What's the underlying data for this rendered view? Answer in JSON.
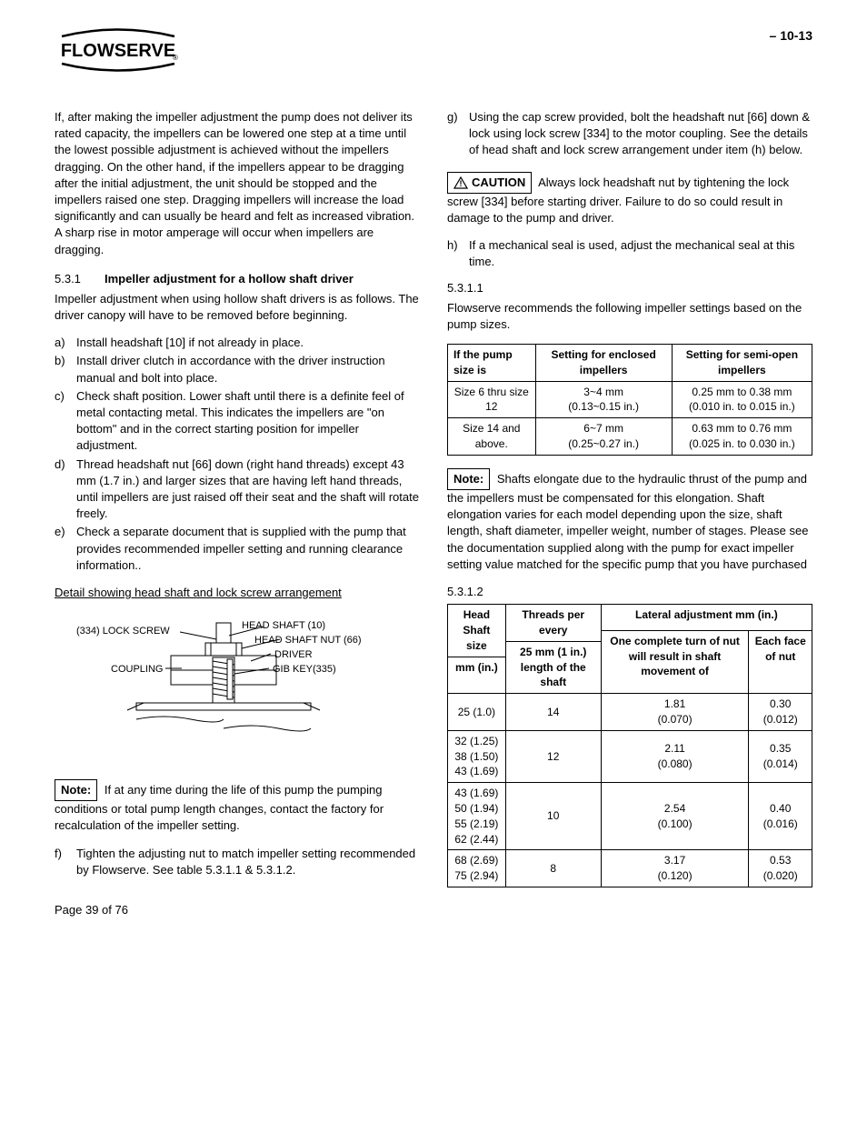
{
  "header": {
    "logo_name": "FLOWSERVE",
    "page_ref": "– 10-13"
  },
  "left": {
    "intro_para": "If, after making the impeller adjustment the pump does not deliver its rated capacity, the impellers can be lowered one step at a time until the lowest possible adjustment is achieved without the impellers dragging. On the other hand, if the impellers appear to be dragging after the initial adjustment, the unit should be stopped and the impellers raised one step.  Dragging impellers will increase the load significantly and can usually be heard and felt as increased vibration.  A sharp rise in motor amperage will occur when impellers are dragging.",
    "sec531_num": "5.3.1",
    "sec531_title": "Impeller adjustment for a hollow shaft driver",
    "sec531_intro": "Impeller adjustment when using hollow shaft drivers is as follows.  The driver canopy will have to be removed before beginning.",
    "items": [
      {
        "l": "a)",
        "t": "Install headshaft [10] if not already in place."
      },
      {
        "l": "b)",
        "t": "Install driver clutch in accordance with the driver instruction manual and bolt into place."
      },
      {
        "l": "c)",
        "t": "Check shaft position.  Lower shaft until there is a definite feel of metal contacting metal.  This indicates the impellers are \"on bottom\" and in the correct starting position for impeller adjustment."
      },
      {
        "l": "d)",
        "t": "Thread headshaft nut [66] down (right hand threads) except 43 mm (1.7 in.) and larger sizes that are having left hand threads, until impellers are just raised off their seat and the shaft will rotate freely."
      },
      {
        "l": "e)",
        "t": "Check a separate document that is supplied with the pump that provides recommended impeller setting and running clearance information.."
      }
    ],
    "detail_label": "Detail showing head shaft and lock screw arrangement",
    "diagram": {
      "lbl_lockscrew": "(334) LOCK SCREW",
      "lbl_headshaft": "HEAD SHAFT (10)",
      "lbl_nut": "HEAD SHAFT NUT (66)",
      "lbl_driver": "DRIVER",
      "lbl_coupling": "COUPLING",
      "lbl_gibkey": "GIB KEY(335)",
      "line_color": "#000000",
      "text_fontsize": 11
    },
    "note_label": "Note:",
    "note_text": " If at any time during the life of this pump the pumping conditions or total pump length changes, contact the factory for recalculation of the impeller setting.",
    "item_f": {
      "l": "f)",
      "t": "Tighten the adjusting nut to match impeller setting recommended by Flowserve.  See table 5.3.1.1 & 5.3.1.2."
    }
  },
  "right": {
    "item_g": {
      "l": "g)",
      "t": "Using the cap screw provided, bolt the headshaft nut [66] down & lock using lock screw [334] to the motor coupling.  See the details of head shaft and lock screw arrangement under item (h) below."
    },
    "caution_label": "CAUTION",
    "caution_text": " Always lock headshaft nut by tightening the lock screw [334] before starting driver. Failure to do so could result in damage to the pump and driver.",
    "item_h": {
      "l": "h)",
      "t": "If a mechanical seal is used, adjust the mechanical seal at this time."
    },
    "sec5311_num": "5.3.1.1",
    "sec5311_text": "Flowserve recommends the following impeller settings based on the pump sizes.",
    "table1": {
      "headers": [
        "If the pump size is",
        "Setting for enclosed impellers",
        "Setting for semi-open impellers"
      ],
      "rows": [
        [
          "Size 6 thru size 12",
          "3~4 mm\n(0.13~0.15 in.)",
          "0.25 mm to 0.38 mm\n(0.010 in. to 0.015 in.)"
        ],
        [
          "Size 14 and above.",
          "6~7 mm\n(0.25~0.27 in.)",
          "0.63 mm to 0.76 mm\n(0.025 in. to 0.030 in.)"
        ]
      ]
    },
    "note2_label": "Note:",
    "note2_text": " Shafts elongate due to the hydraulic thrust of the pump and the impellers must be compensated for this elongation.  Shaft elongation varies for each model depending upon the size, shaft length, shaft diameter, impeller weight, number of stages.  Please see the documentation supplied along with the pump for exact impeller setting value matched for the specific pump that you have purchased",
    "sec5312_num": "5.3.1.2",
    "table2": {
      "head_r1c1a": "Head Shaft size",
      "head_r1c1b": "mm (in.)",
      "head_r1c2a": "Threads per every",
      "head_r1c2b": "25 mm (1 in.) length of the shaft",
      "head_r1c3": "Lateral adjustment mm (in.)",
      "head_r2c3": "One complete turn of nut will result in shaft movement of",
      "head_r2c4": "Each face of nut",
      "rows": [
        [
          "25 (1.0)",
          "14",
          "1.81\n(0.070)",
          "0.30\n(0.012)"
        ],
        [
          "32 (1.25)\n38 (1.50)\n43 (1.69)",
          "12",
          "2.11\n(0.080)",
          "0.35\n(0.014)"
        ],
        [
          "43 (1.69)\n50 (1.94)\n55 (2.19)\n62 (2.44)",
          "10",
          "2.54\n(0.100)",
          "0.40\n(0.016)"
        ],
        [
          "68 (2.69)\n75 (2.94)",
          "8",
          "3.17\n(0.120)",
          "0.53\n(0.020)"
        ]
      ]
    }
  },
  "footer": "Page 39 of 76"
}
